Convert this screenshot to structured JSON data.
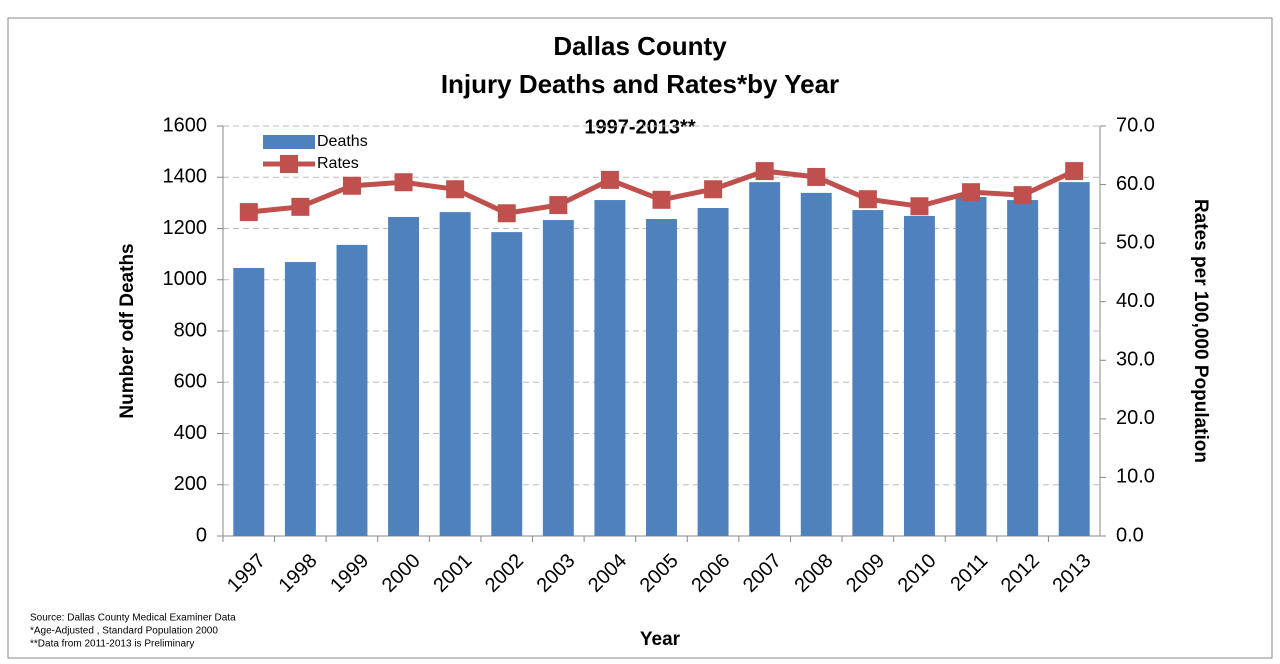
{
  "chart_data": {
    "type": "bar-line",
    "title": "Dallas County",
    "title_line2": "Injury Deaths and Rates*by Year",
    "subtitle": "1997-2013**",
    "x_label": "Year",
    "y_label": "Number odf Deaths",
    "y2_label": "Rates per 100,000 Population",
    "notes": [
      "Source: Dallas County Medical Examiner Data",
      "*Age-Adjusted , Standard Population 2000",
      "**Data from 2011-2013 is Preliminary"
    ],
    "categories": [
      "1997",
      "1998",
      "1999",
      "2000",
      "2001",
      "2002",
      "2003",
      "2004",
      "2005",
      "2006",
      "2007",
      "2008",
      "2009",
      "2010",
      "2011",
      "2012",
      "2013"
    ],
    "series": [
      {
        "name": "Deaths",
        "type": "bar",
        "color": "#4f81bd",
        "values": [
          1046,
          1069,
          1136,
          1245,
          1264,
          1186,
          1233,
          1311,
          1237,
          1280,
          1381,
          1339,
          1272,
          1249,
          1323,
          1311,
          1381
        ]
      },
      {
        "name": "Rates",
        "type": "line",
        "axis": "y2",
        "color": "#c0504d",
        "values": [
          55.3,
          56.2,
          59.8,
          60.4,
          59.2,
          55.1,
          56.5,
          60.8,
          57.4,
          59.2,
          62.3,
          61.3,
          57.5,
          56.3,
          58.7,
          58.2,
          62.3
        ]
      }
    ],
    "ylim": [
      0,
      1600
    ],
    "yticks": [
      0,
      200,
      400,
      600,
      800,
      1000,
      1200,
      1400,
      1600
    ],
    "y2lim": [
      0,
      70
    ],
    "y2ticks": [
      {
        "value": 0,
        "label": "0.0"
      },
      {
        "value": 10,
        "label": "10.0"
      },
      {
        "value": 20,
        "label": "20.0"
      },
      {
        "value": 30,
        "label": "30.0"
      },
      {
        "value": 40,
        "label": "40.0"
      },
      {
        "value": 50,
        "label": "50.0"
      },
      {
        "value": 60,
        "label": "60.0"
      },
      {
        "value": 70,
        "label": "70.0"
      }
    ],
    "grid": true,
    "legend": "top-left"
  }
}
